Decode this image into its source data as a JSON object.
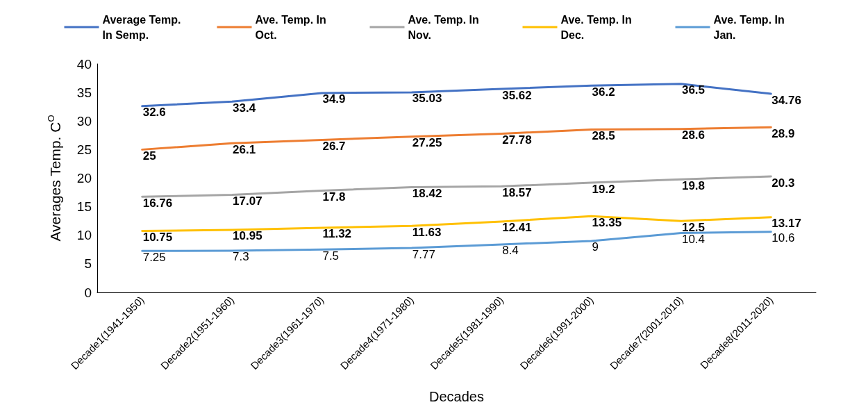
{
  "chart_data": {
    "type": "line",
    "xlabel": "Decades",
    "ylabel": "Averages Temp. C$^{O}$",
    "categories": [
      "Decade1(1941-1950)",
      "Decade2(1951-1960)",
      "Decade3(1961-1970)",
      "Decade4(1971-1980)",
      "Decade5(1981-1990)",
      "Decade6(1991-2000)",
      "Decade7(2001-2010)",
      "Decade8(2011-2020)"
    ],
    "series": [
      {
        "name": "Average Temp. In Semp.",
        "color": "#4472c4",
        "values": [
          32.6,
          33.4,
          34.9,
          35.03,
          35.62,
          36.2,
          36.5,
          34.76
        ]
      },
      {
        "name": "Ave. Temp. In Oct.",
        "color": "#ed7d31",
        "values": [
          25,
          26.1,
          26.7,
          27.25,
          27.78,
          28.5,
          28.6,
          28.9
        ]
      },
      {
        "name": "Ave. Temp. In Nov.",
        "color": "#a5a5a5",
        "values": [
          16.76,
          17.07,
          17.8,
          18.42,
          18.57,
          19.2,
          19.8,
          20.3
        ]
      },
      {
        "name": "Ave. Temp. In Dec.",
        "color": "#ffc000",
        "values": [
          10.75,
          10.95,
          11.32,
          11.63,
          12.41,
          13.35,
          12.5,
          13.17
        ]
      },
      {
        "name": "Ave. Temp. In Jan.",
        "color": "#5b9bd5",
        "values": [
          7.25,
          7.3,
          7.5,
          7.77,
          8.4,
          9,
          10.4,
          10.6
        ]
      }
    ],
    "ylim": [
      0,
      40
    ],
    "yticks": [
      0,
      5,
      10,
      15,
      20,
      25,
      30,
      35,
      40
    ],
    "data_labels": true,
    "legend": "top",
    "marker": "none",
    "line_style": "solid",
    "grid": false
  }
}
